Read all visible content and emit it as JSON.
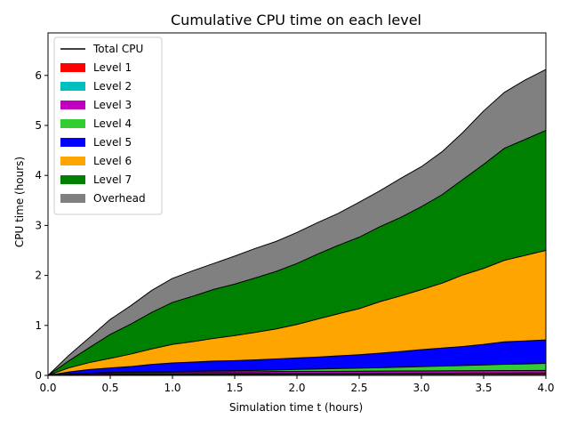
{
  "chart_data": {
    "type": "area",
    "title": "Cumulative CPU time on each level",
    "xlabel": "Simulation time t (hours)",
    "ylabel": "CPU time (hours)",
    "xlim": [
      0.0,
      4.0
    ],
    "ylim": [
      0,
      6.85
    ],
    "xticks": [
      "0.0",
      "0.5",
      "1.0",
      "1.5",
      "2.0",
      "2.5",
      "3.0",
      "3.5",
      "4.0"
    ],
    "yticks": [
      "0",
      "1",
      "2",
      "3",
      "4",
      "5",
      "6"
    ],
    "grid": false,
    "legend_position": "upper-left",
    "total_line": {
      "label": "Total CPU",
      "color": "#000000"
    },
    "x": [
      0.0,
      0.167,
      0.333,
      0.5,
      0.667,
      0.833,
      1.0,
      1.167,
      1.333,
      1.5,
      1.667,
      1.833,
      2.0,
      2.167,
      2.333,
      2.5,
      2.667,
      2.833,
      3.0,
      3.167,
      3.333,
      3.5,
      3.667,
      3.833,
      4.0
    ],
    "series": [
      {
        "name": "Level 1",
        "color": "#ff0000",
        "values": [
          0,
          0.008,
          0.012,
          0.015,
          0.017,
          0.018,
          0.019,
          0.02,
          0.021,
          0.022,
          0.022,
          0.023,
          0.024,
          0.024,
          0.025,
          0.025,
          0.026,
          0.026,
          0.027,
          0.027,
          0.028,
          0.028,
          0.029,
          0.029,
          0.03
        ]
      },
      {
        "name": "Level 2",
        "color": "#00bfbf",
        "values": [
          0,
          0.005,
          0.008,
          0.01,
          0.011,
          0.012,
          0.012,
          0.013,
          0.013,
          0.014,
          0.014,
          0.015,
          0.015,
          0.015,
          0.016,
          0.016,
          0.016,
          0.017,
          0.017,
          0.017,
          0.018,
          0.018,
          0.018,
          0.019,
          0.02
        ]
      },
      {
        "name": "Level 3",
        "color": "#bf00bf",
        "values": [
          0,
          0.013,
          0.02,
          0.025,
          0.028,
          0.031,
          0.034,
          0.035,
          0.036,
          0.037,
          0.038,
          0.039,
          0.04,
          0.041,
          0.042,
          0.043,
          0.044,
          0.045,
          0.046,
          0.047,
          0.048,
          0.049,
          0.05,
          0.051,
          0.05
        ]
      },
      {
        "name": "Level 4",
        "color": "#32cd32",
        "values": [
          0,
          0.004,
          0.007,
          0.01,
          0.012,
          0.014,
          0.015,
          0.018,
          0.021,
          0.023,
          0.027,
          0.033,
          0.04,
          0.047,
          0.054,
          0.06,
          0.068,
          0.076,
          0.085,
          0.095,
          0.105,
          0.115,
          0.125,
          0.13,
          0.14
        ]
      },
      {
        "name": "Level 5",
        "color": "#0000ff",
        "values": [
          0,
          0.04,
          0.07,
          0.09,
          0.11,
          0.145,
          0.17,
          0.18,
          0.195,
          0.2,
          0.21,
          0.22,
          0.23,
          0.24,
          0.255,
          0.27,
          0.29,
          0.315,
          0.34,
          0.36,
          0.38,
          0.41,
          0.45,
          0.46,
          0.47
        ]
      },
      {
        "name": "Level 6",
        "color": "#ffa500",
        "values": [
          0,
          0.08,
          0.14,
          0.19,
          0.25,
          0.31,
          0.37,
          0.41,
          0.455,
          0.5,
          0.55,
          0.6,
          0.67,
          0.76,
          0.84,
          0.92,
          1.03,
          1.11,
          1.2,
          1.3,
          1.43,
          1.52,
          1.63,
          1.71,
          1.79
        ]
      },
      {
        "name": "Level 7",
        "color": "#008000",
        "values": [
          0,
          0.14,
          0.3,
          0.48,
          0.6,
          0.73,
          0.84,
          0.91,
          0.98,
          1.03,
          1.09,
          1.15,
          1.22,
          1.3,
          1.37,
          1.43,
          1.5,
          1.57,
          1.66,
          1.77,
          1.91,
          2.08,
          2.24,
          2.32,
          2.4
        ]
      },
      {
        "name": "Overhead",
        "color": "#808080",
        "values": [
          0,
          0.11,
          0.2,
          0.3,
          0.37,
          0.44,
          0.48,
          0.51,
          0.52,
          0.56,
          0.59,
          0.6,
          0.62,
          0.63,
          0.64,
          0.7,
          0.72,
          0.78,
          0.8,
          0.86,
          0.94,
          1.07,
          1.12,
          1.19,
          1.22
        ]
      }
    ]
  }
}
